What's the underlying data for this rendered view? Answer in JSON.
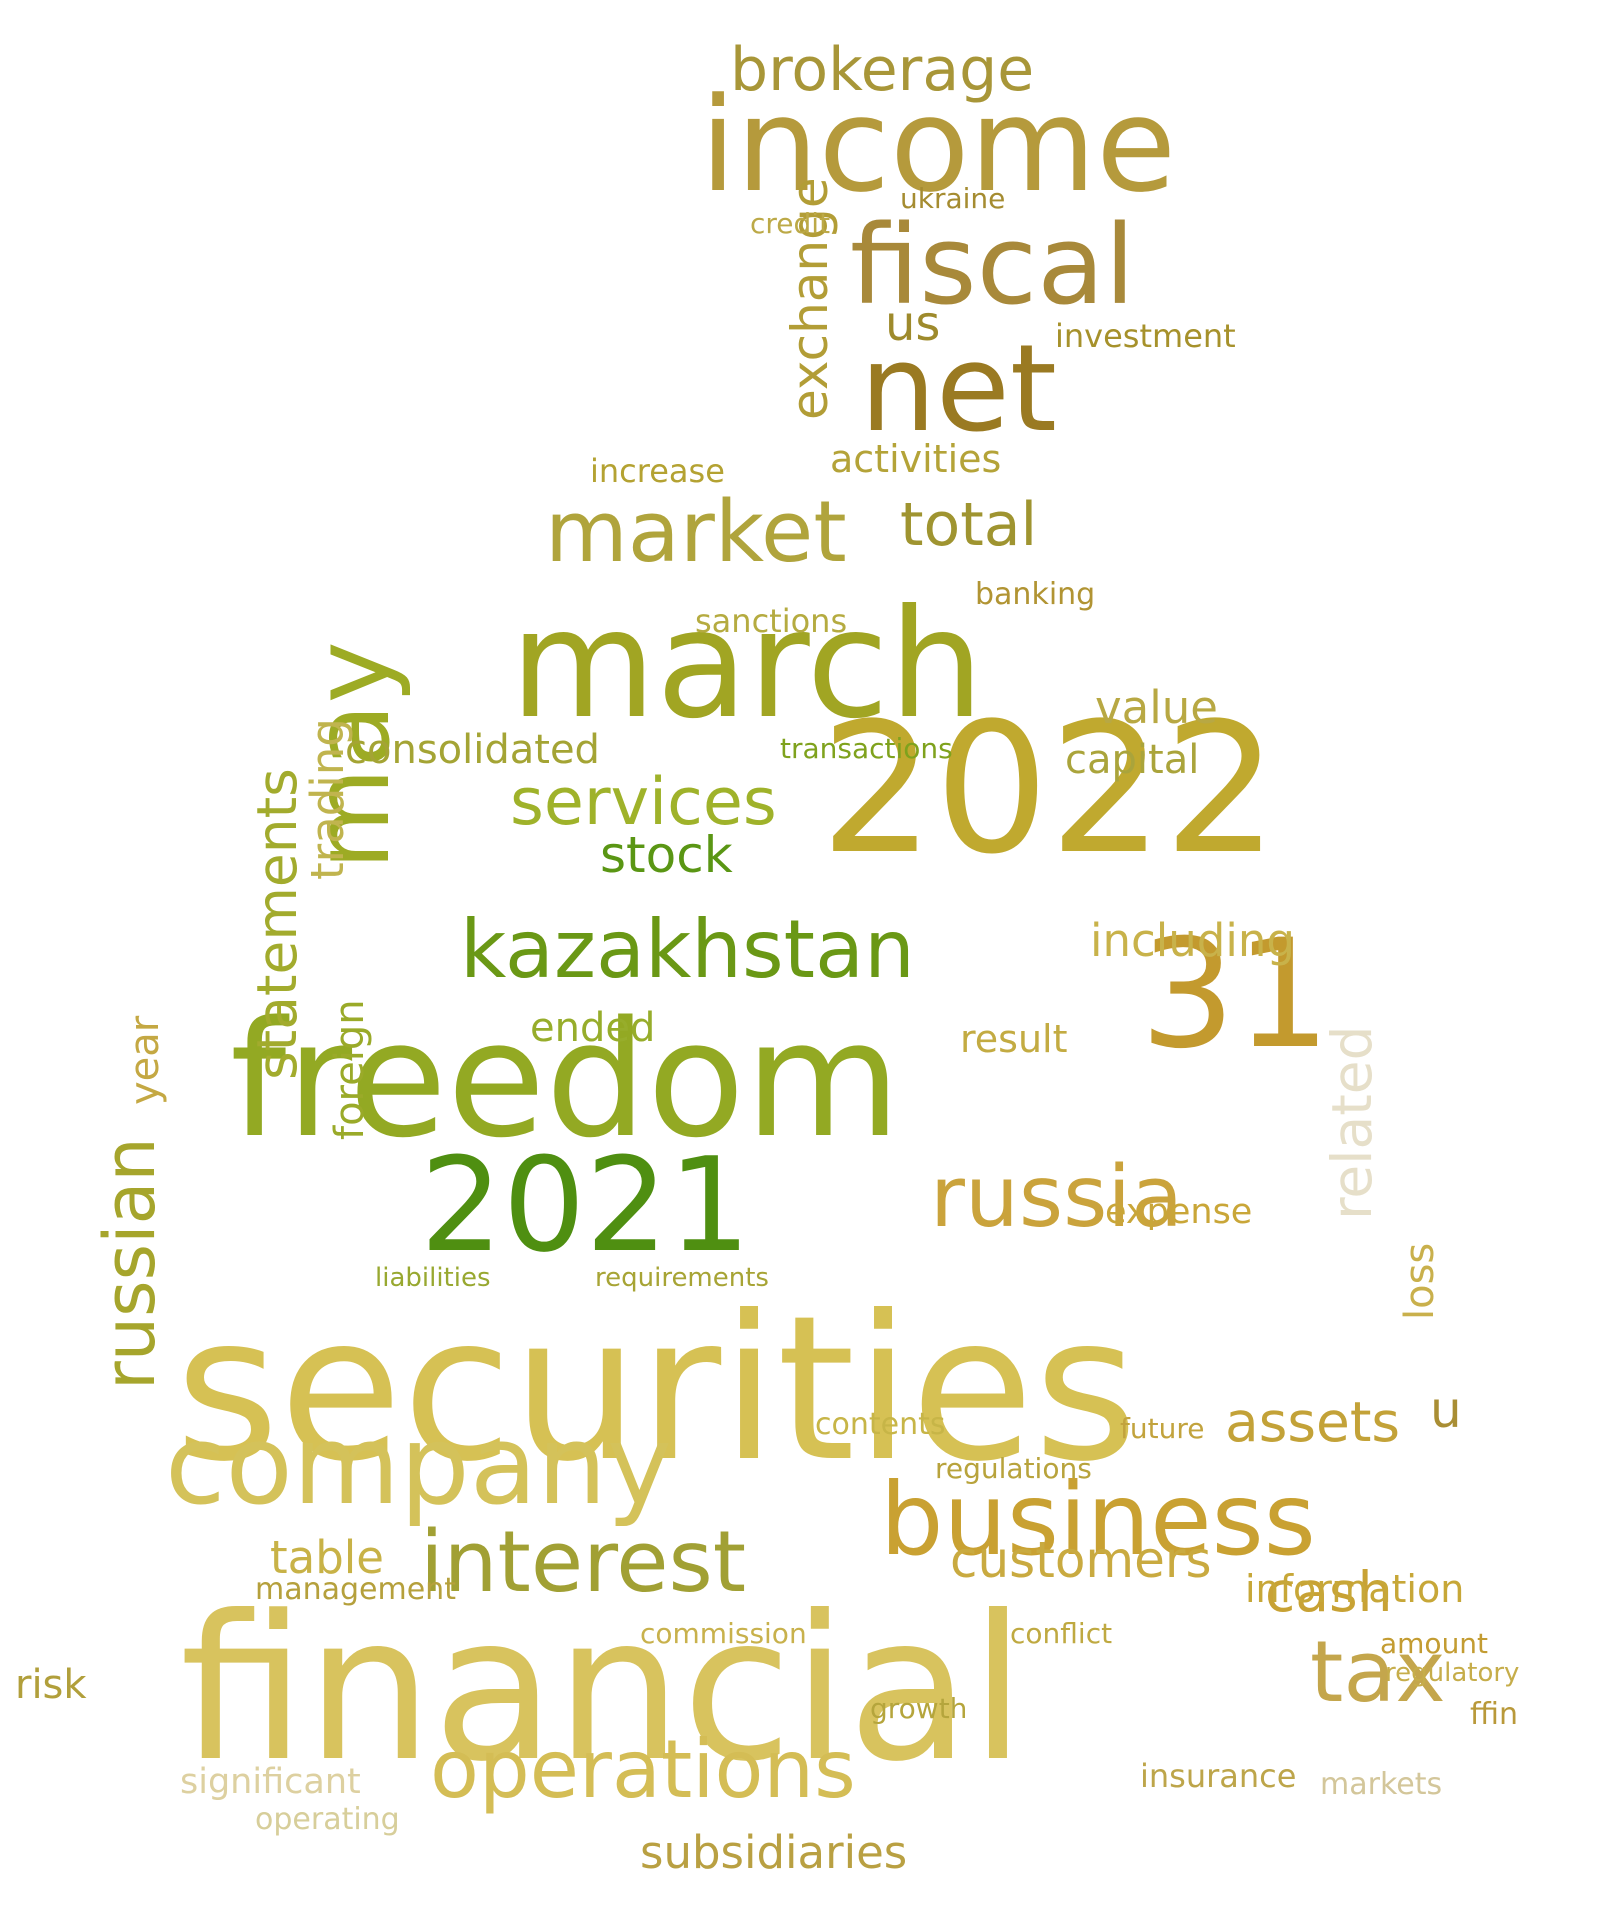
{
  "cloud": {
    "words": [
      {
        "text": "securities",
        "color": "#d6c154"
      },
      {
        "text": "financial",
        "color": "#d8c35e"
      },
      {
        "text": "freedom",
        "color": "#93a923"
      },
      {
        "text": "march",
        "color": "#a1a523"
      },
      {
        "text": "2022",
        "color": "#c0a92f"
      },
      {
        "text": "31",
        "color": "#c39a2e"
      },
      {
        "text": "income",
        "color": "#b59a3c"
      },
      {
        "text": "net",
        "color": "#9a7a22"
      },
      {
        "text": "fiscal",
        "color": "#a8893a"
      },
      {
        "text": "2021",
        "color": "#4f8f11"
      },
      {
        "text": "company",
        "color": "#d4c25a"
      },
      {
        "text": "business",
        "color": "#c9a132"
      },
      {
        "text": "may",
        "color": "#9dab24"
      },
      {
        "text": "kazakhstan",
        "color": "#6a9815"
      },
      {
        "text": "market",
        "color": "#b0a43c"
      },
      {
        "text": "russia",
        "color": "#caa33c"
      },
      {
        "text": "interest",
        "color": "#a1a034"
      },
      {
        "text": "operations",
        "color": "#d4bd55"
      },
      {
        "text": "russian",
        "color": "#a6a52c"
      },
      {
        "text": "tax",
        "color": "#c4a64c"
      },
      {
        "text": "brokerage",
        "color": "#a89638"
      },
      {
        "text": "services",
        "color": "#9fb22a"
      },
      {
        "text": "stock",
        "color": "#5a9614"
      },
      {
        "text": "statements",
        "color": "#a2ab2d"
      },
      {
        "text": "consolidated",
        "color": "#a4a434"
      },
      {
        "text": "total",
        "color": "#9f9430"
      },
      {
        "text": "assets",
        "color": "#c3a238"
      },
      {
        "text": "customers",
        "color": "#c9aa40"
      },
      {
        "text": "cash",
        "color": "#c8a234"
      },
      {
        "text": "related",
        "color": "#e6dfc9"
      },
      {
        "text": "including",
        "color": "#c8b24a"
      },
      {
        "text": "subsidiaries",
        "color": "#b9a042"
      },
      {
        "text": "exchange",
        "color": "#b29d36"
      },
      {
        "text": "trading",
        "color": "#c0b44e"
      },
      {
        "text": "us",
        "color": "#9e8a2c"
      },
      {
        "text": "activities",
        "color": "#b4a338"
      },
      {
        "text": "investment",
        "color": "#a6912b"
      },
      {
        "text": "information",
        "color": "#c7a738"
      },
      {
        "text": "value",
        "color": "#b8a843"
      },
      {
        "text": "capital",
        "color": "#aaa43b"
      },
      {
        "text": "table",
        "color": "#c8b247"
      },
      {
        "text": "significant",
        "color": "#ddd0a0"
      },
      {
        "text": "u",
        "color": "#a98e34"
      },
      {
        "text": "ukraine",
        "color": "#a58c31"
      },
      {
        "text": "credit",
        "color": "#bca947"
      },
      {
        "text": "sanctions",
        "color": "#b5ab40"
      },
      {
        "text": "ended",
        "color": "#97ad2b"
      },
      {
        "text": "result",
        "color": "#c3ab42"
      },
      {
        "text": "foreign",
        "color": "#9aaa29"
      },
      {
        "text": "year",
        "color": "#c4a843"
      },
      {
        "text": "risk",
        "color": "#b19f3b"
      },
      {
        "text": "management",
        "color": "#b5a03c"
      },
      {
        "text": "expense",
        "color": "#c9a638"
      },
      {
        "text": "loss",
        "color": "#c9b04c"
      },
      {
        "text": "insurance",
        "color": "#bda54a"
      },
      {
        "text": "regulatory",
        "color": "#c6ad4a"
      },
      {
        "text": "amount",
        "color": "#c39c32"
      },
      {
        "text": "ffin",
        "color": "#b9993a"
      },
      {
        "text": "markets",
        "color": "#d3c69a"
      },
      {
        "text": "contents",
        "color": "#c7b547"
      },
      {
        "text": "regulations",
        "color": "#b8a33c"
      },
      {
        "text": "future",
        "color": "#c2a33d"
      },
      {
        "text": "operating",
        "color": "#d7ce9a"
      },
      {
        "text": "conflict",
        "color": "#bfa941"
      },
      {
        "text": "commission",
        "color": "#c8b14c"
      },
      {
        "text": "growth",
        "color": "#b5a53c"
      },
      {
        "text": "liabilities",
        "color": "#98a830"
      },
      {
        "text": "requirements",
        "color": "#a7a435"
      },
      {
        "text": "transactions",
        "color": "#7fa21d"
      },
      {
        "text": "increase",
        "color": "#b4a232"
      },
      {
        "text": "banking",
        "color": "#b19433"
      }
    ]
  }
}
